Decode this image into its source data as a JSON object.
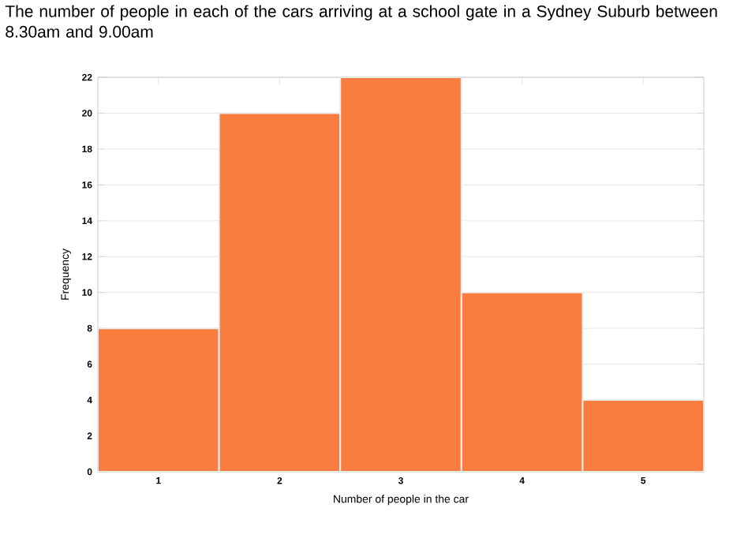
{
  "chart_data": {
    "type": "bar",
    "title": "The number of people in each of the cars arriving at a school gate in a Sydney Suburb between 8.30am and 9.00am",
    "categories": [
      "1",
      "2",
      "3",
      "4",
      "5"
    ],
    "values": [
      8,
      20,
      22,
      10,
      4
    ],
    "color": "#f97d3f",
    "xlabel": "Number of people in the car",
    "ylabel": "Frequency",
    "ylim": [
      0,
      22
    ],
    "yticks": [
      0,
      2,
      4,
      6,
      8,
      10,
      12,
      14,
      16,
      18,
      20,
      22
    ],
    "grid": "y"
  }
}
